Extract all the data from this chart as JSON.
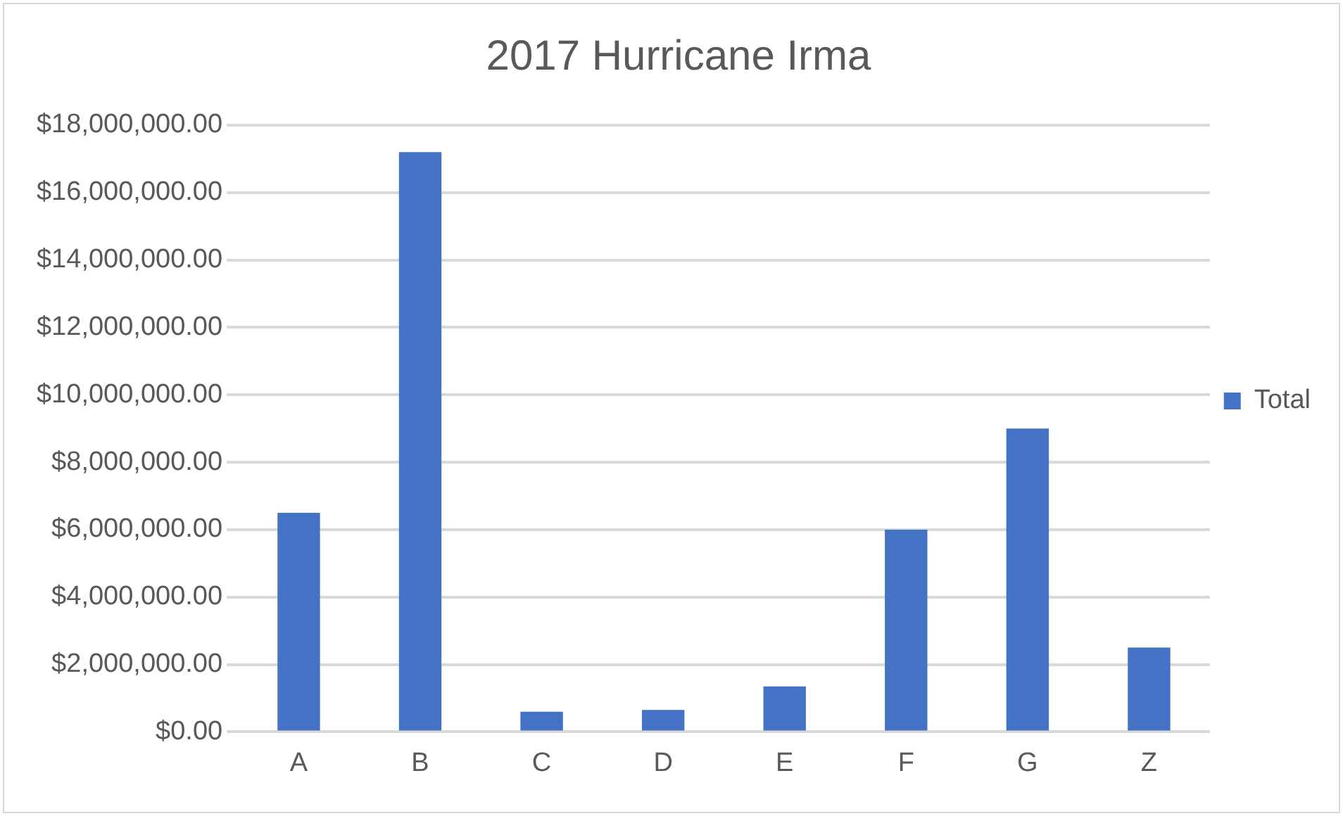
{
  "chart_data": {
    "type": "bar",
    "title": "2017 Hurricane Irma",
    "categories": [
      "A",
      "B",
      "C",
      "D",
      "E",
      "F",
      "G",
      "Z"
    ],
    "series": [
      {
        "name": "Total",
        "color": "#4472c4",
        "values": [
          6500000,
          17200000,
          600000,
          650000,
          1350000,
          6000000,
          9000000,
          2500000
        ]
      }
    ],
    "ylim": [
      0,
      18000000
    ],
    "yticks": [
      {
        "value": 0,
        "label": "$0.00"
      },
      {
        "value": 2000000,
        "label": "$2,000,000.00"
      },
      {
        "value": 4000000,
        "label": "$4,000,000.00"
      },
      {
        "value": 6000000,
        "label": "$6,000,000.00"
      },
      {
        "value": 8000000,
        "label": "$8,000,000.00"
      },
      {
        "value": 10000000,
        "label": "$10,000,000.00"
      },
      {
        "value": 12000000,
        "label": "$12,000,000.00"
      },
      {
        "value": 14000000,
        "label": "$14,000,000.00"
      },
      {
        "value": 16000000,
        "label": "$16,000,000.00"
      },
      {
        "value": 18000000,
        "label": "$18,000,000.00"
      }
    ],
    "grid": "y",
    "legend": "right"
  }
}
